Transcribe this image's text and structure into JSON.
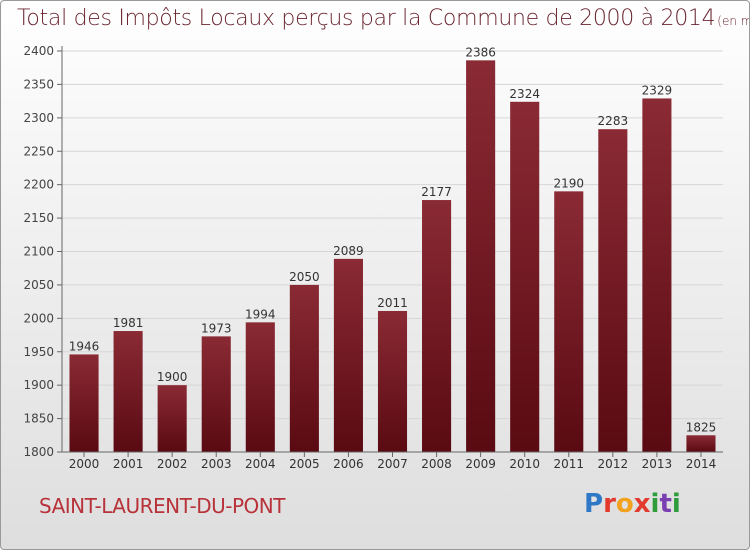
{
  "title": {
    "main": "Total des Impôts Locaux perçus par la Commune de 2000 à 2014",
    "unit": "(en milliers d'€)"
  },
  "commune": "SAINT-LAURENT-DU-PONT",
  "logo": {
    "letters": [
      "P",
      "r",
      "o",
      "x",
      "i",
      "t",
      "i"
    ]
  },
  "colors": {
    "bar_dark": "#5a0a12",
    "bar_light": "#8a2a34",
    "title": "#6a2630",
    "commune": "#b8323a",
    "grid": "#d6d6d6"
  },
  "chart_data": {
    "type": "bar",
    "title": "Total des Impôts Locaux perçus par la Commune de 2000 à 2014",
    "ylabel": "en milliers d'€",
    "xlabel": "",
    "categories": [
      "2000",
      "2001",
      "2002",
      "2003",
      "2004",
      "2005",
      "2006",
      "2007",
      "2008",
      "2009",
      "2010",
      "2011",
      "2012",
      "2013",
      "2014"
    ],
    "values": [
      1946,
      1981,
      1900,
      1973,
      1994,
      2050,
      2089,
      2011,
      2177,
      2386,
      2324,
      2190,
      2283,
      2329,
      1825
    ],
    "ylim": [
      1800,
      2400
    ],
    "yticks": [
      1800,
      1850,
      1900,
      1950,
      2000,
      2050,
      2100,
      2150,
      2200,
      2250,
      2300,
      2350,
      2400
    ],
    "grid": true
  }
}
